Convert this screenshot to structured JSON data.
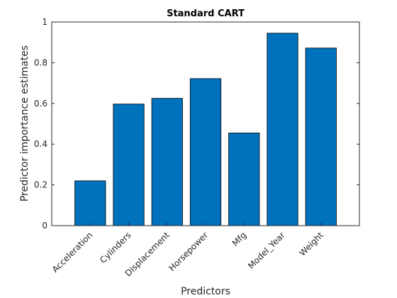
{
  "chart_data": {
    "type": "bar",
    "title": "Standard CART",
    "xlabel": "Predictors",
    "ylabel": "Predictor importance estimates",
    "categories": [
      "Acceleration",
      "Cylinders",
      "Displacement",
      "Horsepower",
      "Mfg",
      "Model_Year",
      "Weight"
    ],
    "values": [
      0.22,
      0.597,
      0.625,
      0.722,
      0.455,
      0.945,
      0.872
    ],
    "ylim": [
      0,
      1
    ],
    "yticks": [
      0,
      0.2,
      0.4,
      0.6,
      0.8,
      1
    ],
    "ytick_labels": [
      "0",
      "0.2",
      "0.4",
      "0.6",
      "0.8",
      "1"
    ],
    "bar_color": "#0072BD",
    "grid": false,
    "legend": "none"
  }
}
